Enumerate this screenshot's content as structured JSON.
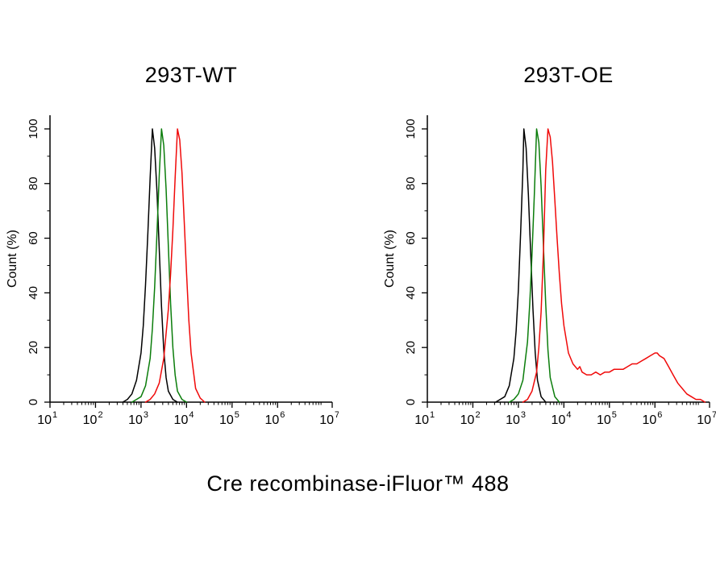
{
  "figure": {
    "shared_xlabel": "Cre recombinase-iFluor™ 488"
  },
  "chart_data": [
    {
      "type": "line",
      "title": "293T-WT",
      "xlabel": "Cre recombinase-iFluor™ 488",
      "ylabel": "Count  (%)",
      "x_scale": "log10",
      "xlim": [
        1,
        7.2
      ],
      "ylim": [
        0,
        105
      ],
      "grid": false,
      "legend": "none",
      "x_tick_base": "10",
      "x_major_ticks": [
        1,
        2,
        3,
        4,
        5,
        6,
        7.2
      ],
      "x_tick_exponents": [
        "1",
        "2",
        "3",
        "4",
        "5",
        "6",
        "7.2"
      ],
      "y_major_ticks": [
        0,
        20,
        40,
        60,
        80,
        100
      ],
      "y_minor_ticks": [
        10,
        30,
        50,
        70,
        90
      ],
      "series": [
        {
          "name": "black",
          "color": "#000000",
          "points": [
            [
              2.6,
              0
            ],
            [
              2.7,
              1
            ],
            [
              2.8,
              3
            ],
            [
              2.9,
              8
            ],
            [
              3.0,
              18
            ],
            [
              3.05,
              28
            ],
            [
              3.1,
              43
            ],
            [
              3.15,
              62
            ],
            [
              3.2,
              82
            ],
            [
              3.25,
              100
            ],
            [
              3.3,
              93
            ],
            [
              3.35,
              77
            ],
            [
              3.4,
              56
            ],
            [
              3.45,
              35
            ],
            [
              3.5,
              19
            ],
            [
              3.55,
              9
            ],
            [
              3.6,
              4
            ],
            [
              3.7,
              1
            ],
            [
              3.8,
              0
            ]
          ]
        },
        {
          "name": "green",
          "color": "#0b7d0b",
          "points": [
            [
              2.8,
              0
            ],
            [
              2.9,
              1
            ],
            [
              3.0,
              2
            ],
            [
              3.1,
              6
            ],
            [
              3.2,
              16
            ],
            [
              3.25,
              27
            ],
            [
              3.3,
              42
            ],
            [
              3.35,
              62
            ],
            [
              3.4,
              83
            ],
            [
              3.45,
              100
            ],
            [
              3.5,
              94
            ],
            [
              3.55,
              78
            ],
            [
              3.6,
              57
            ],
            [
              3.65,
              36
            ],
            [
              3.7,
              20
            ],
            [
              3.75,
              10
            ],
            [
              3.8,
              4
            ],
            [
              3.9,
              1
            ],
            [
              4.0,
              0
            ]
          ]
        },
        {
          "name": "red",
          "color": "#f00a0a",
          "points": [
            [
              3.1,
              0
            ],
            [
              3.2,
              1
            ],
            [
              3.3,
              3
            ],
            [
              3.4,
              7
            ],
            [
              3.5,
              16
            ],
            [
              3.6,
              34
            ],
            [
              3.65,
              47
            ],
            [
              3.7,
              63
            ],
            [
              3.75,
              82
            ],
            [
              3.8,
              100
            ],
            [
              3.85,
              96
            ],
            [
              3.9,
              84
            ],
            [
              3.95,
              66
            ],
            [
              4.0,
              47
            ],
            [
              4.05,
              30
            ],
            [
              4.1,
              18
            ],
            [
              4.2,
              5
            ],
            [
              4.3,
              1.5
            ],
            [
              4.4,
              0
            ]
          ]
        }
      ]
    },
    {
      "type": "line",
      "title": "293T-OE",
      "xlabel": "Cre recombinase-iFluor™ 488",
      "ylabel": "Count  (%)",
      "x_scale": "log10",
      "xlim": [
        1,
        7.2
      ],
      "ylim": [
        0,
        105
      ],
      "grid": false,
      "legend": "none",
      "x_tick_base": "10",
      "x_major_ticks": [
        1,
        2,
        3,
        4,
        5,
        6,
        7.2
      ],
      "x_tick_exponents": [
        "1",
        "2",
        "3",
        "4",
        "5",
        "6",
        "7.2"
      ],
      "y_major_ticks": [
        0,
        20,
        40,
        60,
        80,
        100
      ],
      "y_minor_ticks": [
        10,
        30,
        50,
        70,
        90
      ],
      "series": [
        {
          "name": "black",
          "color": "#000000",
          "points": [
            [
              2.5,
              0
            ],
            [
              2.6,
              1
            ],
            [
              2.7,
              2
            ],
            [
              2.8,
              6
            ],
            [
              2.9,
              16
            ],
            [
              2.95,
              26
            ],
            [
              3.0,
              41
            ],
            [
              3.05,
              62
            ],
            [
              3.1,
              85
            ],
            [
              3.12,
              100
            ],
            [
              3.17,
              93
            ],
            [
              3.22,
              76
            ],
            [
              3.27,
              55
            ],
            [
              3.32,
              34
            ],
            [
              3.37,
              18
            ],
            [
              3.42,
              8
            ],
            [
              3.5,
              2
            ],
            [
              3.6,
              0
            ]
          ]
        },
        {
          "name": "green",
          "color": "#0b7d0b",
          "points": [
            [
              2.8,
              0
            ],
            [
              2.9,
              1
            ],
            [
              3.0,
              3
            ],
            [
              3.1,
              8
            ],
            [
              3.2,
              22
            ],
            [
              3.25,
              36
            ],
            [
              3.3,
              54
            ],
            [
              3.35,
              76
            ],
            [
              3.4,
              100
            ],
            [
              3.45,
              95
            ],
            [
              3.5,
              79
            ],
            [
              3.55,
              57
            ],
            [
              3.6,
              36
            ],
            [
              3.65,
              19
            ],
            [
              3.7,
              9
            ],
            [
              3.8,
              2
            ],
            [
              3.9,
              0
            ]
          ]
        },
        {
          "name": "red",
          "color": "#f00a0a",
          "points": [
            [
              3.1,
              0
            ],
            [
              3.2,
              1
            ],
            [
              3.3,
              4
            ],
            [
              3.4,
              11
            ],
            [
              3.45,
              20
            ],
            [
              3.5,
              33
            ],
            [
              3.55,
              55
            ],
            [
              3.6,
              85
            ],
            [
              3.65,
              100
            ],
            [
              3.7,
              97
            ],
            [
              3.75,
              88
            ],
            [
              3.8,
              74
            ],
            [
              3.85,
              60
            ],
            [
              3.9,
              47
            ],
            [
              3.95,
              36
            ],
            [
              4.0,
              28
            ],
            [
              4.1,
              18
            ],
            [
              4.2,
              14
            ],
            [
              4.3,
              12
            ],
            [
              4.35,
              13
            ],
            [
              4.4,
              11
            ],
            [
              4.5,
              10
            ],
            [
              4.6,
              10
            ],
            [
              4.7,
              11
            ],
            [
              4.8,
              10
            ],
            [
              4.9,
              11
            ],
            [
              5.0,
              11
            ],
            [
              5.1,
              12
            ],
            [
              5.2,
              12
            ],
            [
              5.3,
              12
            ],
            [
              5.4,
              13
            ],
            [
              5.5,
              14
            ],
            [
              5.6,
              14
            ],
            [
              5.7,
              15
            ],
            [
              5.8,
              16
            ],
            [
              5.9,
              17
            ],
            [
              6.0,
              18
            ],
            [
              6.05,
              18
            ],
            [
              6.1,
              17
            ],
            [
              6.2,
              16
            ],
            [
              6.3,
              13
            ],
            [
              6.4,
              10
            ],
            [
              6.5,
              7
            ],
            [
              6.6,
              5
            ],
            [
              6.7,
              3
            ],
            [
              6.8,
              2
            ],
            [
              6.9,
              1
            ],
            [
              7.0,
              1
            ],
            [
              7.1,
              0
            ]
          ]
        }
      ]
    }
  ]
}
